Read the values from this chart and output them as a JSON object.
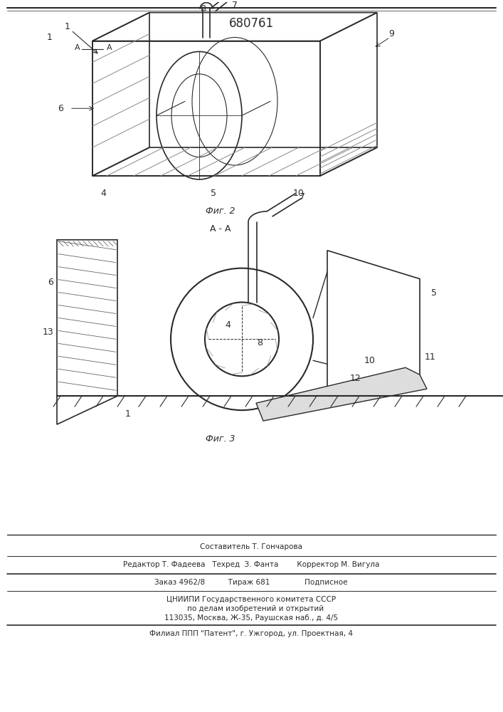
{
  "patent_number": "680761",
  "fig2_label": "Фиг. 2",
  "fig3_label": "Фиг. 3",
  "section_label": "А - А",
  "footer_line1": "Составитель Т. Гончарова",
  "footer_line2": "Редактор Т. Фадеева   Техред  З. Фанта        Корректор М. Вигула",
  "footer_line3": "Заказ 4962/8          Тираж 681               Подписное",
  "footer_line4": "ЦНИИПИ Государственного комитета СССР",
  "footer_line5": "    по делам изобретений и открытий",
  "footer_line6": "113035, Москва, Ж-35, Раушская наб., д. 4/5",
  "footer_line7": "Филиал ППП \"Патент\", г. Ужгород, ул. Проектная, 4",
  "bg_color": "#ffffff",
  "drawing_color": "#2a2a2a",
  "hatch_color": "#555555"
}
